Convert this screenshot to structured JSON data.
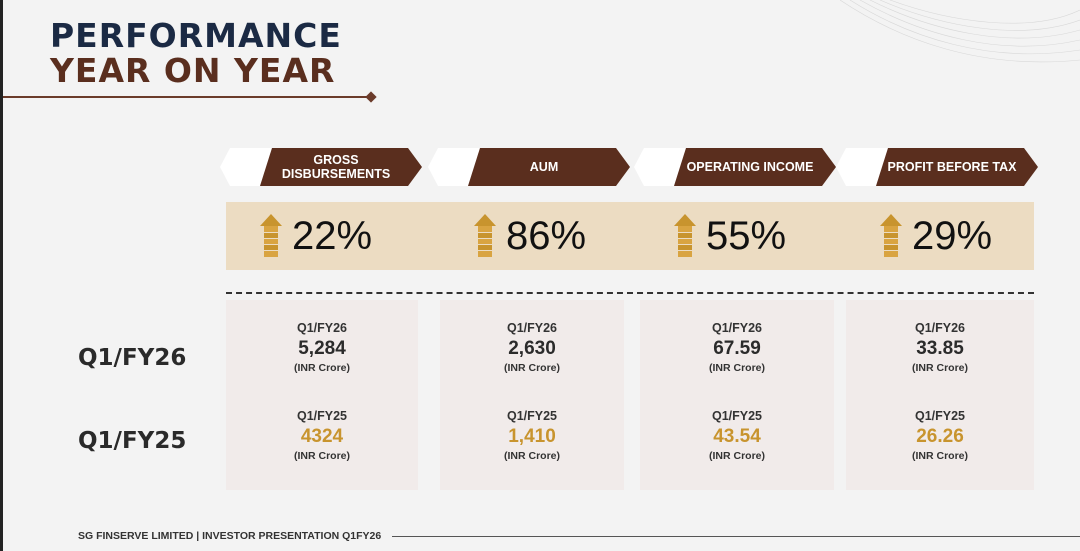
{
  "title": {
    "line1": "PERFORMANCE",
    "line2": "YEAR ON YEAR"
  },
  "colors": {
    "brown": "#5a2e1e",
    "navy": "#1b2a44",
    "gold": "#c8942e",
    "band": "#ecdcc2"
  },
  "row_labels": [
    "Q1/FY26",
    "Q1/FY25"
  ],
  "metrics": [
    {
      "label": "GROSS DISBURSEMENTS",
      "growth": "22%",
      "cur_period": "Q1/FY26",
      "cur_value": "5,284",
      "prev_period": "Q1/FY25",
      "prev_value": "4324",
      "unit": "(INR Crore)"
    },
    {
      "label": "AUM",
      "growth": "86%",
      "cur_period": "Q1/FY26",
      "cur_value": "2,630",
      "prev_period": "Q1/FY25",
      "prev_value": "1,410",
      "unit": "(INR Crore)"
    },
    {
      "label": "OPERATING INCOME",
      "growth": "55%",
      "cur_period": "Q1/FY26",
      "cur_value": "67.59",
      "prev_period": "Q1/FY25",
      "prev_value": "43.54",
      "unit": "(INR Crore)"
    },
    {
      "label": "PROFIT BEFORE TAX",
      "growth": "29%",
      "cur_period": "Q1/FY26",
      "cur_value": "33.85",
      "prev_period": "Q1/FY25",
      "prev_value": "26.26",
      "unit": "(INR Crore)"
    }
  ],
  "footer": "SG FINSERVE LIMITED | INVESTOR PRESENTATION Q1FY26"
}
